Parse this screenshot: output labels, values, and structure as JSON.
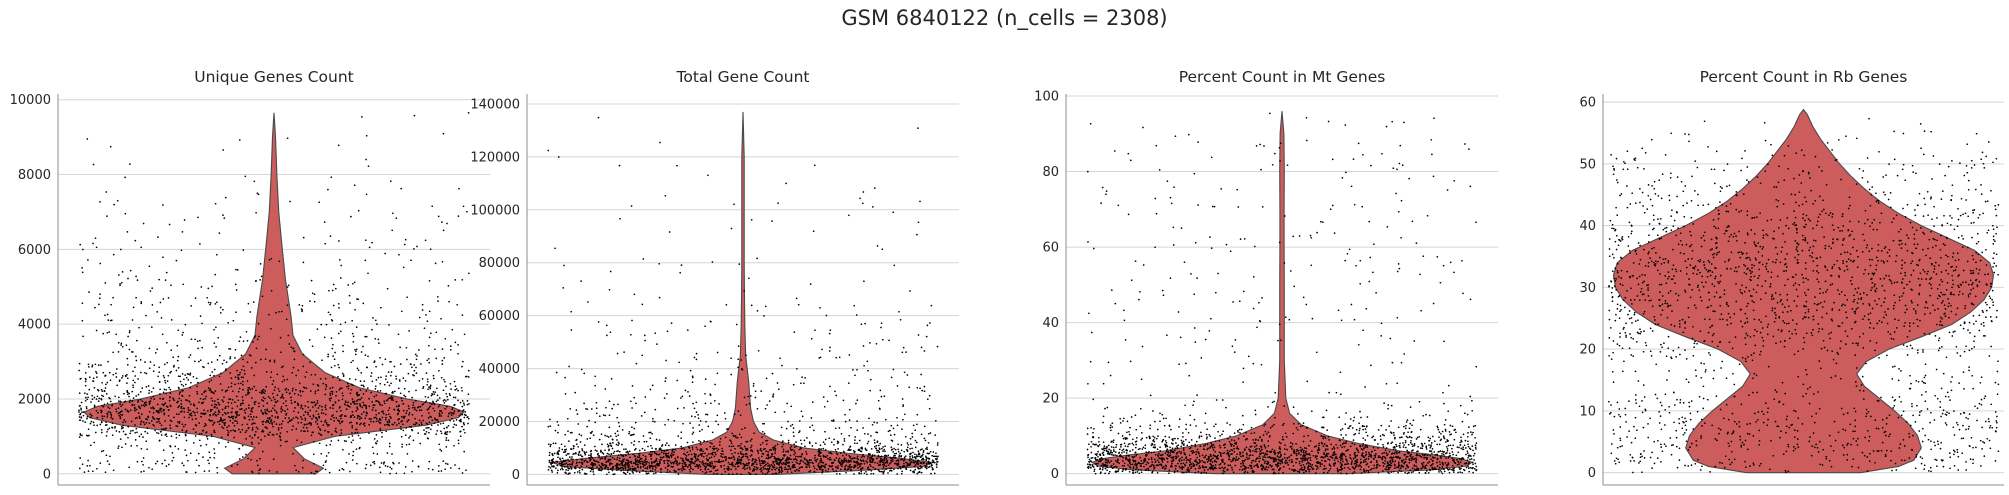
{
  "figure": {
    "title": "GSM 6840122 (n_cells = 2308)"
  },
  "colors": {
    "violin_fill": "#cd5c5c",
    "violin_edge": "#4a4a4a",
    "points": "#000000",
    "grid": "#d5d5d5"
  },
  "chart_data": [
    {
      "type": "violin",
      "title": "Unique Genes Count",
      "ylim": [
        -300,
        10100
      ],
      "yticks": [
        0,
        2000,
        4000,
        6000,
        8000,
        10000
      ],
      "grid": true,
      "n_points": 2308,
      "distribution": {
        "y": [
          0,
          150,
          400,
          700,
          1000,
          1300,
          1500,
          1650,
          1800,
          2000,
          2300,
          2700,
          3200,
          3700,
          4200,
          4700,
          5200,
          5700,
          6200,
          7000,
          8000,
          9000,
          9650
        ],
        "density": [
          0.22,
          0.26,
          0.16,
          0.1,
          0.32,
          0.8,
          0.97,
          1.0,
          0.93,
          0.7,
          0.45,
          0.27,
          0.15,
          0.1,
          0.09,
          0.075,
          0.06,
          0.05,
          0.04,
          0.025,
          0.015,
          0.008,
          0.0
        ]
      }
    },
    {
      "type": "violin",
      "title": "Total Gene Count",
      "ylim": [
        -4000,
        143000
      ],
      "yticks": [
        0,
        20000,
        40000,
        60000,
        80000,
        100000,
        120000,
        140000
      ],
      "grid": true,
      "n_points": 2308,
      "distribution": {
        "y": [
          0,
          1500,
          3000,
          4500,
          6000,
          8000,
          10000,
          13000,
          16000,
          20000,
          25000,
          30000,
          35000,
          40000,
          45000,
          55000,
          65000,
          80000,
          100000,
          120000,
          137000
        ],
        "density": [
          0.18,
          0.62,
          0.95,
          1.0,
          0.84,
          0.55,
          0.32,
          0.16,
          0.085,
          0.055,
          0.04,
          0.035,
          0.03,
          0.022,
          0.014,
          0.01,
          0.008,
          0.006,
          0.004,
          0.002,
          0.0
        ]
      }
    },
    {
      "type": "violin",
      "title": "Percent Count in Mt Genes",
      "ylim": [
        -3,
        100
      ],
      "yticks": [
        0,
        20,
        40,
        60,
        80,
        100
      ],
      "grid": true,
      "n_points": 2308,
      "distribution": {
        "y": [
          0,
          1,
          2,
          3,
          4,
          5,
          6,
          8,
          10,
          13,
          16,
          20,
          30,
          40,
          50,
          60,
          70,
          80,
          90,
          96
        ],
        "density": [
          0.35,
          0.78,
          0.97,
          1.0,
          0.94,
          0.8,
          0.62,
          0.4,
          0.24,
          0.1,
          0.04,
          0.02,
          0.012,
          0.012,
          0.012,
          0.011,
          0.011,
          0.012,
          0.01,
          0.0
        ]
      }
    },
    {
      "type": "violin",
      "title": "Percent Count in Rb Genes",
      "ylim": [
        -2,
        61
      ],
      "yticks": [
        0,
        10,
        20,
        30,
        40,
        50,
        60
      ],
      "grid": true,
      "n_points": 2308,
      "distribution": {
        "y": [
          0,
          1,
          2,
          4,
          6,
          8,
          10,
          12,
          14,
          16,
          18,
          20,
          22,
          24,
          26,
          28,
          30,
          32,
          34,
          36,
          38,
          40,
          42,
          44,
          46,
          48,
          50,
          52,
          54,
          56,
          58,
          58.8
        ],
        "density": [
          0.3,
          0.5,
          0.58,
          0.62,
          0.6,
          0.55,
          0.48,
          0.4,
          0.32,
          0.28,
          0.33,
          0.45,
          0.62,
          0.78,
          0.88,
          0.95,
          0.99,
          1.0,
          0.98,
          0.9,
          0.76,
          0.62,
          0.5,
          0.4,
          0.32,
          0.25,
          0.19,
          0.14,
          0.09,
          0.05,
          0.02,
          0.0
        ]
      }
    }
  ]
}
